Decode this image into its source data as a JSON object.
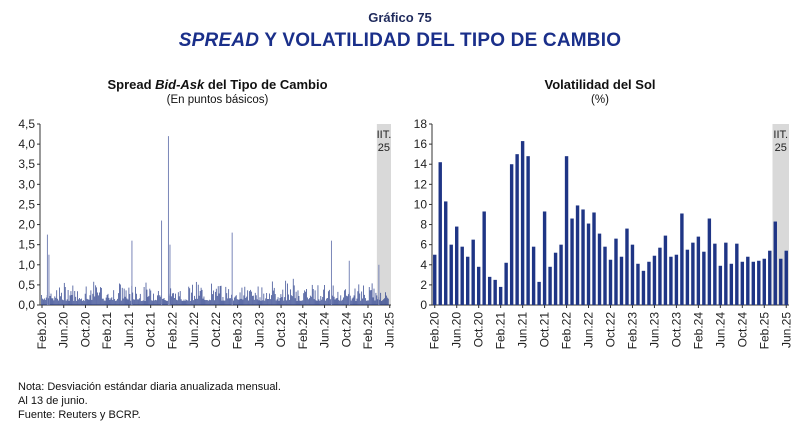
{
  "header": {
    "number": "Gráfico 75",
    "title_italic": "SPREAD",
    "title_rest": " Y VOLATILIDAD DEL TIPO DE CAMBIO"
  },
  "left_panel": {
    "title_pre": "Spread ",
    "title_italic": "Bid-Ask",
    "title_post": " del Tipo de Cambio",
    "subtitle": "(En puntos básicos)"
  },
  "right_panel": {
    "title": "Volatilidad del Sol",
    "subtitle": "(%)"
  },
  "notes": [
    "Nota: Desviación estándar diaria anualizada mensual.",
    "Al 13 de junio.",
    "Fuente: Reuters y BCRP."
  ],
  "colors": {
    "bar": "#1f3585",
    "shade": "#d9d9d9",
    "title": "#1a2f8a"
  },
  "chart_data": [
    {
      "type": "bar",
      "title": "Spread Bid-Ask del Tipo de Cambio",
      "subtitle": "(En puntos básicos)",
      "xlabel": "",
      "ylabel": "",
      "ylim": [
        0,
        4.5
      ],
      "yticks": [
        "0,0",
        "0,5",
        "1,0",
        "1,5",
        "2,0",
        "2,5",
        "3,0",
        "3,5",
        "4,0",
        "4,5"
      ],
      "x_tick_labels": [
        "Feb.20",
        "Jun.20",
        "Oct.20",
        "Feb.21",
        "Jun.21",
        "Oct.21",
        "Feb.22",
        "Jun.22",
        "Oct.22",
        "Feb.23",
        "Jun.23",
        "Oct.23",
        "Feb.24",
        "Jun.24",
        "Oct.24",
        "Feb.25",
        "Jun.25"
      ],
      "x_range": [
        "Feb.20",
        "Jun.25"
      ],
      "granularity": "daily",
      "shaded_region_label": [
        "IIT.",
        "25"
      ],
      "notable_peaks": [
        {
          "x": "Mar.20",
          "value": 1.75
        },
        {
          "x": "Mar.20",
          "value": 1.25
        },
        {
          "x": "Jun.21",
          "value": 1.6
        },
        {
          "x": "Dec.21",
          "value": 2.1
        },
        {
          "x": "Jan.22",
          "value": 4.2
        },
        {
          "x": "Jan.22",
          "value": 1.5
        },
        {
          "x": "Jan.23",
          "value": 1.8
        },
        {
          "x": "Jul.24",
          "value": 1.6
        },
        {
          "x": "Oct.24",
          "value": 1.1
        },
        {
          "x": "Apr.25",
          "value": 1.0
        }
      ],
      "typical_level": [
        0.1,
        0.55
      ]
    },
    {
      "type": "bar",
      "title": "Volatilidad del Sol",
      "subtitle": "(%)",
      "xlabel": "",
      "ylabel": "",
      "ylim": [
        0,
        18
      ],
      "yticks": [
        "0",
        "2",
        "4",
        "6",
        "8",
        "10",
        "12",
        "14",
        "16",
        "18"
      ],
      "x_tick_labels": [
        "Feb.20",
        "Jun.20",
        "Oct.20",
        "Feb.21",
        "Jun.21",
        "Oct.21",
        "Feb.22",
        "Jun.22",
        "Oct.22",
        "Feb.23",
        "Jun.23",
        "Oct.23",
        "Feb.24",
        "Jun.24",
        "Oct.24",
        "Feb.25",
        "Jun.25"
      ],
      "shaded_region_label": [
        "IIT.",
        "25"
      ],
      "categories": [
        "Feb.20",
        "Mar.20",
        "Apr.20",
        "May.20",
        "Jun.20",
        "Jul.20",
        "Aug.20",
        "Sep.20",
        "Oct.20",
        "Nov.20",
        "Dec.20",
        "Jan.21",
        "Feb.21",
        "Mar.21",
        "Apr.21",
        "May.21",
        "Jun.21",
        "Jul.21",
        "Aug.21",
        "Sep.21",
        "Oct.21",
        "Nov.21",
        "Dec.21",
        "Jan.22",
        "Feb.22",
        "Mar.22",
        "Apr.22",
        "May.22",
        "Jun.22",
        "Jul.22",
        "Aug.22",
        "Sep.22",
        "Oct.22",
        "Nov.22",
        "Dec.22",
        "Jan.23",
        "Feb.23",
        "Mar.23",
        "Apr.23",
        "May.23",
        "Jun.23",
        "Jul.23",
        "Aug.23",
        "Sep.23",
        "Oct.23",
        "Nov.23",
        "Dec.23",
        "Jan.24",
        "Feb.24",
        "Mar.24",
        "Apr.24",
        "May.24",
        "Jun.24",
        "Jul.24",
        "Aug.24",
        "Sep.24",
        "Oct.24",
        "Nov.24",
        "Dec.24",
        "Jan.25",
        "Feb.25",
        "Mar.25",
        "Apr.25",
        "May.25",
        "Jun.25"
      ],
      "values": [
        5.0,
        14.2,
        10.3,
        6.0,
        7.8,
        5.8,
        4.8,
        6.5,
        3.8,
        9.3,
        2.8,
        2.5,
        1.8,
        4.2,
        14.0,
        15.0,
        16.3,
        14.8,
        5.8,
        2.3,
        9.3,
        3.8,
        5.2,
        6.0,
        14.8,
        8.6,
        9.9,
        9.5,
        8.1,
        9.2,
        7.1,
        5.8,
        4.5,
        6.6,
        4.8,
        7.6,
        6.0,
        4.1,
        3.4,
        4.3,
        4.9,
        5.7,
        6.9,
        4.8,
        5.0,
        9.1,
        5.5,
        6.2,
        6.8,
        5.3,
        8.6,
        6.1,
        3.9,
        6.2,
        4.1,
        6.1,
        4.3,
        4.8,
        4.3,
        4.4,
        4.6,
        5.4,
        8.3,
        4.6,
        5.4
      ]
    }
  ]
}
